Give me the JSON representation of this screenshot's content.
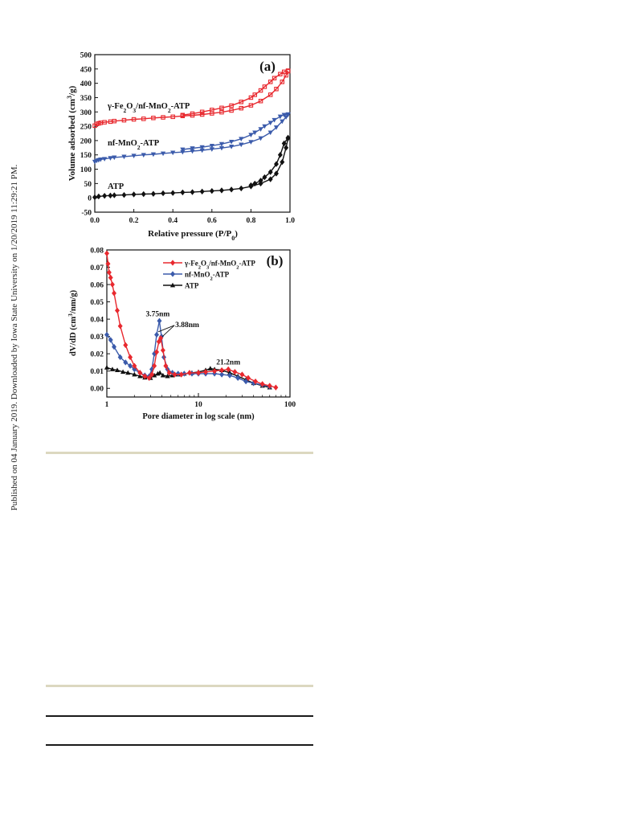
{
  "sidebar_note": "Published on 04 January 2019. Downloaded by Iowa State University on 1/20/2019 11:29:21 PM.",
  "colors": {
    "red": "#e8282e",
    "blue": "#3b5bab",
    "black": "#111111",
    "rule_beige": "#dcd8c0",
    "rule_dark": "#1a1a1a"
  },
  "chart_data": [
    {
      "type": "line",
      "panel_label": "(a)",
      "xlabel": "Relative pressure (P/P",
      "xlabel_sub": "0",
      "xlabel_end": ")",
      "ylabel": "Volume adsorbed (cm",
      "ylabel_sup": "3",
      "ylabel_end": "/g)",
      "xlim": [
        0.0,
        1.0
      ],
      "ylim": [
        -50,
        500
      ],
      "xticks": [
        0.0,
        0.2,
        0.4,
        0.6,
        0.8,
        1.0
      ],
      "xtick_labels": [
        "0.0",
        "0.2",
        "0.4",
        "0.6",
        "0.8",
        "1.0"
      ],
      "yticks": [
        -50,
        0,
        50,
        100,
        150,
        200,
        250,
        300,
        350,
        400,
        450,
        500
      ],
      "ytick_labels": [
        "-50",
        "0",
        "50",
        "100",
        "150",
        "200",
        "250",
        "300",
        "350",
        "400",
        "450",
        "500"
      ],
      "series": [
        {
          "name": "γ-Fe2O3/nf-MnO2-ATP",
          "label_parts": [
            "γ-Fe",
            "2",
            "O",
            "3",
            "/nf-MnO",
            "2",
            "-ATP"
          ],
          "color": "#e8282e",
          "marker": "square",
          "adsorption": [
            [
              0.0,
              252
            ],
            [
              0.01,
              258
            ],
            [
              0.02,
              260
            ],
            [
              0.03,
              262
            ],
            [
              0.05,
              264
            ],
            [
              0.08,
              266
            ],
            [
              0.1,
              268
            ],
            [
              0.15,
              271
            ],
            [
              0.2,
              274
            ],
            [
              0.25,
              276
            ],
            [
              0.3,
              279
            ],
            [
              0.35,
              281
            ],
            [
              0.4,
              283
            ],
            [
              0.45,
              286
            ],
            [
              0.5,
              288
            ],
            [
              0.55,
              291
            ],
            [
              0.6,
              295
            ],
            [
              0.65,
              299
            ],
            [
              0.7,
              305
            ],
            [
              0.75,
              313
            ],
            [
              0.8,
              323
            ],
            [
              0.85,
              338
            ],
            [
              0.9,
              360
            ],
            [
              0.93,
              380
            ],
            [
              0.96,
              405
            ],
            [
              0.98,
              428
            ],
            [
              0.99,
              442
            ]
          ],
          "desorption": [
            [
              0.99,
              444
            ],
            [
              0.97,
              440
            ],
            [
              0.95,
              432
            ],
            [
              0.92,
              418
            ],
            [
              0.9,
              405
            ],
            [
              0.87,
              388
            ],
            [
              0.85,
              375
            ],
            [
              0.82,
              360
            ],
            [
              0.8,
              350
            ],
            [
              0.75,
              335
            ],
            [
              0.7,
              322
            ],
            [
              0.65,
              314
            ],
            [
              0.6,
              307
            ],
            [
              0.55,
              300
            ],
            [
              0.5,
              294
            ],
            [
              0.45,
              289
            ]
          ]
        },
        {
          "name": "nf-MnO2-ATP",
          "label_parts": [
            "nf-MnO",
            "2",
            "-ATP"
          ],
          "color": "#3b5bab",
          "marker": "triangle-down",
          "adsorption": [
            [
              0.0,
              126
            ],
            [
              0.01,
              130
            ],
            [
              0.02,
              132
            ],
            [
              0.03,
              134
            ],
            [
              0.05,
              136
            ],
            [
              0.08,
              139
            ],
            [
              0.1,
              141
            ],
            [
              0.15,
              144
            ],
            [
              0.2,
              147
            ],
            [
              0.25,
              150
            ],
            [
              0.3,
              152
            ],
            [
              0.35,
              155
            ],
            [
              0.4,
              158
            ],
            [
              0.45,
              160
            ],
            [
              0.5,
              163
            ],
            [
              0.55,
              166
            ],
            [
              0.6,
              170
            ],
            [
              0.65,
              174
            ],
            [
              0.7,
              179
            ],
            [
              0.75,
              186
            ],
            [
              0.8,
              195
            ],
            [
              0.85,
              208
            ],
            [
              0.9,
              228
            ],
            [
              0.93,
              246
            ],
            [
              0.96,
              267
            ],
            [
              0.98,
              282
            ],
            [
              0.99,
              290
            ]
          ],
          "desorption": [
            [
              0.99,
              292
            ],
            [
              0.97,
              290
            ],
            [
              0.95,
              284
            ],
            [
              0.92,
              272
            ],
            [
              0.9,
              262
            ],
            [
              0.87,
              250
            ],
            [
              0.85,
              240
            ],
            [
              0.82,
              228
            ],
            [
              0.8,
              220
            ],
            [
              0.75,
              206
            ],
            [
              0.7,
              196
            ],
            [
              0.65,
              188
            ],
            [
              0.6,
              182
            ],
            [
              0.55,
              177
            ],
            [
              0.5,
              173
            ],
            [
              0.45,
              169
            ]
          ]
        },
        {
          "name": "ATP",
          "label_parts": [
            "ATP"
          ],
          "color": "#111111",
          "marker": "diamond",
          "adsorption": [
            [
              0.0,
              2
            ],
            [
              0.02,
              5
            ],
            [
              0.05,
              7
            ],
            [
              0.08,
              8
            ],
            [
              0.1,
              9
            ],
            [
              0.15,
              10
            ],
            [
              0.2,
              12
            ],
            [
              0.25,
              13
            ],
            [
              0.3,
              14
            ],
            [
              0.35,
              16
            ],
            [
              0.4,
              17
            ],
            [
              0.45,
              19
            ],
            [
              0.5,
              20
            ],
            [
              0.55,
              22
            ],
            [
              0.6,
              24
            ],
            [
              0.65,
              26
            ],
            [
              0.7,
              29
            ],
            [
              0.75,
              33
            ],
            [
              0.8,
              40
            ],
            [
              0.85,
              50
            ],
            [
              0.9,
              65
            ],
            [
              0.93,
              85
            ],
            [
              0.96,
              125
            ],
            [
              0.98,
              175
            ],
            [
              0.99,
              208
            ]
          ],
          "desorption": [
            [
              0.99,
              210
            ],
            [
              0.97,
              190
            ],
            [
              0.95,
              150
            ],
            [
              0.93,
              118
            ],
            [
              0.9,
              90
            ],
            [
              0.87,
              72
            ],
            [
              0.85,
              60
            ],
            [
              0.82,
              50
            ],
            [
              0.8,
              44
            ]
          ]
        }
      ]
    },
    {
      "type": "line",
      "panel_label": "(b)",
      "xlabel": "Pore diameter in log scale (nm)",
      "ylabel": "dV/dD (cm",
      "ylabel_sup": "3",
      "ylabel_end": "/nm/g)",
      "xscale": "log",
      "xlim": [
        1,
        100
      ],
      "ylim": [
        -0.005,
        0.08
      ],
      "xticks": [
        1,
        10,
        100
      ],
      "xtick_labels": [
        "1",
        "10",
        "100"
      ],
      "yticks": [
        0.0,
        0.01,
        0.02,
        0.03,
        0.04,
        0.05,
        0.06,
        0.07,
        0.08
      ],
      "ytick_labels": [
        "0.00",
        "0.01",
        "0.02",
        "0.03",
        "0.04",
        "0.05",
        "0.06",
        "0.07",
        "0.08"
      ],
      "legend_position": "top-right",
      "annotations": [
        {
          "text": "3.75nm",
          "x": 3.75,
          "y": 0.039
        },
        {
          "text": "3.88nm",
          "x": 3.88,
          "y": 0.029
        },
        {
          "text": "21.2nm",
          "x": 21.2,
          "y": 0.011
        }
      ],
      "series": [
        {
          "name": "γ-Fe2O3/nf-MnO2-ATP",
          "label_parts": [
            "γ-Fe",
            "2",
            "O",
            "3",
            "/nf-MnO",
            "2",
            "-ATP"
          ],
          "color": "#e8282e",
          "marker": "diamond",
          "points": [
            [
              1.0,
              0.078
            ],
            [
              1.03,
              0.072
            ],
            [
              1.06,
              0.067
            ],
            [
              1.1,
              0.064
            ],
            [
              1.15,
              0.06
            ],
            [
              1.2,
              0.055
            ],
            [
              1.3,
              0.045
            ],
            [
              1.4,
              0.036
            ],
            [
              1.6,
              0.025
            ],
            [
              1.8,
              0.018
            ],
            [
              2.0,
              0.013
            ],
            [
              2.3,
              0.009
            ],
            [
              2.6,
              0.007
            ],
            [
              2.9,
              0.006
            ],
            [
              3.1,
              0.008
            ],
            [
              3.3,
              0.013
            ],
            [
              3.5,
              0.021
            ],
            [
              3.7,
              0.027
            ],
            [
              3.88,
              0.029
            ],
            [
              4.1,
              0.022
            ],
            [
              4.4,
              0.013
            ],
            [
              4.8,
              0.009
            ],
            [
              5.5,
              0.008
            ],
            [
              6.5,
              0.008
            ],
            [
              8,
              0.009
            ],
            [
              10,
              0.009
            ],
            [
              12,
              0.0095
            ],
            [
              15,
              0.01
            ],
            [
              18,
              0.0105
            ],
            [
              21.2,
              0.011
            ],
            [
              25,
              0.0095
            ],
            [
              30,
              0.008
            ],
            [
              35,
              0.006
            ],
            [
              42,
              0.004
            ],
            [
              50,
              0.0025
            ],
            [
              60,
              0.0015
            ],
            [
              70,
              0.0005
            ]
          ]
        },
        {
          "name": "nf-MnO2-ATP",
          "label_parts": [
            "nf-MnO",
            "2",
            "-ATP"
          ],
          "color": "#3b5bab",
          "marker": "diamond",
          "points": [
            [
              1.0,
              0.031
            ],
            [
              1.1,
              0.028
            ],
            [
              1.2,
              0.024
            ],
            [
              1.4,
              0.018
            ],
            [
              1.6,
              0.015
            ],
            [
              1.8,
              0.013
            ],
            [
              2.0,
              0.011
            ],
            [
              2.3,
              0.009
            ],
            [
              2.6,
              0.0075
            ],
            [
              2.9,
              0.007
            ],
            [
              3.1,
              0.011
            ],
            [
              3.3,
              0.02
            ],
            [
              3.5,
              0.031
            ],
            [
              3.75,
              0.039
            ],
            [
              3.95,
              0.03
            ],
            [
              4.2,
              0.018
            ],
            [
              4.6,
              0.011
            ],
            [
              5.2,
              0.009
            ],
            [
              6,
              0.0085
            ],
            [
              7,
              0.0085
            ],
            [
              8.5,
              0.0085
            ],
            [
              10,
              0.0085
            ],
            [
              12,
              0.0085
            ],
            [
              15,
              0.0085
            ],
            [
              18,
              0.008
            ],
            [
              22,
              0.0075
            ],
            [
              27,
              0.006
            ],
            [
              33,
              0.004
            ],
            [
              40,
              0.003
            ],
            [
              50,
              0.002
            ],
            [
              60,
              0.001
            ]
          ]
        },
        {
          "name": "ATP",
          "label_parts": [
            "ATP"
          ],
          "color": "#111111",
          "marker": "triangle-up",
          "points": [
            [
              1.0,
              0.012
            ],
            [
              1.15,
              0.011
            ],
            [
              1.3,
              0.0105
            ],
            [
              1.5,
              0.0095
            ],
            [
              1.7,
              0.009
            ],
            [
              2.0,
              0.008
            ],
            [
              2.3,
              0.007
            ],
            [
              2.6,
              0.0062
            ],
            [
              3.0,
              0.006
            ],
            [
              3.3,
              0.0075
            ],
            [
              3.6,
              0.0085
            ],
            [
              3.8,
              0.009
            ],
            [
              4.1,
              0.0075
            ],
            [
              4.6,
              0.007
            ],
            [
              5.2,
              0.0075
            ],
            [
              6,
              0.008
            ],
            [
              7,
              0.0085
            ],
            [
              8.5,
              0.009
            ],
            [
              10,
              0.0095
            ],
            [
              12,
              0.0105
            ],
            [
              13.5,
              0.0115
            ],
            [
              15,
              0.011
            ],
            [
              18,
              0.0105
            ],
            [
              22,
              0.009
            ],
            [
              27,
              0.007
            ],
            [
              33,
              0.005
            ],
            [
              40,
              0.003
            ],
            [
              50,
              0.0015
            ],
            [
              60,
              0.0005
            ]
          ]
        }
      ]
    }
  ]
}
